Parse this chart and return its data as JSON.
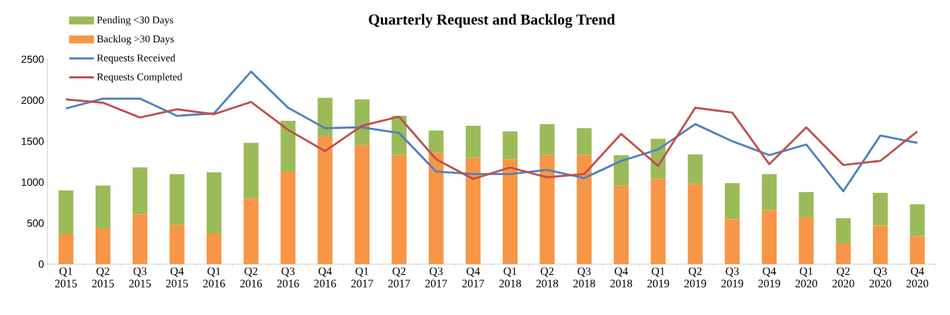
{
  "chart_data": {
    "type": "bar",
    "title": "Quarterly Request and Backlog Trend",
    "categories": [
      "Q1 2015",
      "Q2 2015",
      "Q3 2015",
      "Q4 2015",
      "Q1 2016",
      "Q2 2016",
      "Q3 2016",
      "Q4 2016",
      "Q1 2017",
      "Q2 2017",
      "Q3 2017",
      "Q4 2017",
      "Q1 2018",
      "Q2 2018",
      "Q3 2018",
      "Q4 2018",
      "Q1 2019",
      "Q2 2019",
      "Q3 2019",
      "Q4 2019",
      "Q1 2020",
      "Q2 2020",
      "Q3 2020",
      "Q4 2020"
    ],
    "stacked": true,
    "series": [
      {
        "name": "Backlog >30 Days",
        "color": "#f79646",
        "values": [
          370,
          440,
          610,
          480,
          370,
          800,
          1130,
          1560,
          1450,
          1330,
          1360,
          1300,
          1280,
          1330,
          1330,
          960,
          1040,
          980,
          550,
          660,
          570,
          250,
          470,
          340
        ]
      },
      {
        "name": "Pending <30 Days",
        "color": "#9bbb59",
        "values": [
          530,
          520,
          570,
          620,
          750,
          680,
          620,
          470,
          560,
          480,
          270,
          390,
          340,
          380,
          330,
          370,
          490,
          360,
          440,
          440,
          310,
          310,
          400,
          390
        ]
      },
      {
        "name": "Requests Received",
        "type": "line",
        "color": "#4f81bd",
        "values": [
          1900,
          2020,
          2020,
          1810,
          1840,
          2350,
          1910,
          1660,
          1670,
          1600,
          1130,
          1100,
          1100,
          1150,
          1050,
          1260,
          1400,
          1710,
          1500,
          1330,
          1460,
          890,
          1570,
          1480
        ]
      },
      {
        "name": "Requests Completed",
        "type": "line",
        "color": "#c0504d",
        "values": [
          2010,
          1970,
          1790,
          1890,
          1830,
          1980,
          1640,
          1380,
          1690,
          1800,
          1280,
          1040,
          1180,
          1060,
          1100,
          1590,
          1200,
          1910,
          1850,
          1220,
          1670,
          1210,
          1260,
          1620
        ]
      }
    ],
    "ylim": [
      0,
      2500
    ],
    "yticks": [
      0,
      500,
      1000,
      1500,
      2000,
      2500
    ],
    "legend": "top left"
  }
}
